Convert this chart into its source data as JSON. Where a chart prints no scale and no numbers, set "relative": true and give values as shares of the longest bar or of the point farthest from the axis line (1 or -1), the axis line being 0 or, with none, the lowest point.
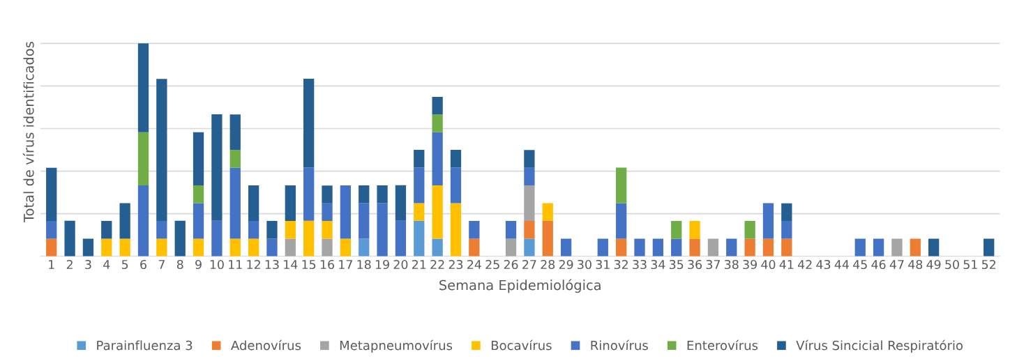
{
  "chart_data": {
    "type": "bar",
    "stacked": true,
    "relative": true,
    "grid": "y",
    "legend": "bottom",
    "xlabel": "Semana Epidemiológica",
    "ylabel": "Total de vírus identificados",
    "categories": [
      "1",
      "2",
      "3",
      "4",
      "5",
      "6",
      "7",
      "8",
      "9",
      "10",
      "11",
      "12",
      "13",
      "14",
      "15",
      "16",
      "17",
      "18",
      "19",
      "20",
      "21",
      "22",
      "23",
      "24",
      "25",
      "26",
      "27",
      "28",
      "29",
      "30",
      "31",
      "32",
      "33",
      "34",
      "35",
      "36",
      "37",
      "38",
      "39",
      "40",
      "41",
      "42",
      "43",
      "44",
      "45",
      "46",
      "47",
      "48",
      "49",
      "50",
      "51",
      "52"
    ],
    "series": [
      {
        "name": "Parainfluenza 3",
        "color": "#5b9bd5",
        "values": [
          0,
          0,
          0,
          0,
          0,
          0,
          0,
          0,
          0,
          0,
          0,
          0,
          0,
          0,
          0,
          0,
          0,
          0.083,
          0,
          0,
          0.167,
          0.083,
          0,
          0,
          0,
          0,
          0.083,
          0,
          0,
          0,
          0,
          0,
          0,
          0,
          0,
          0,
          0,
          0,
          0,
          0,
          0,
          0,
          0,
          0,
          0,
          0,
          0,
          0,
          0,
          0,
          0,
          0
        ]
      },
      {
        "name": "Adenovírus",
        "color": "#ed7d31",
        "values": [
          0.083,
          0,
          0,
          0,
          0,
          0,
          0,
          0,
          0,
          0,
          0,
          0,
          0,
          0,
          0,
          0,
          0,
          0,
          0,
          0,
          0,
          0,
          0,
          0.083,
          0,
          0,
          0.083,
          0.167,
          0,
          0,
          0,
          0.083,
          0,
          0,
          0,
          0.083,
          0,
          0,
          0.083,
          0.083,
          0.083,
          0,
          0,
          0,
          0,
          0,
          0,
          0.083,
          0,
          0,
          0,
          0
        ]
      },
      {
        "name": "Metapneumovírus",
        "color": "#a5a5a5",
        "values": [
          0,
          0,
          0,
          0,
          0,
          0,
          0,
          0,
          0,
          0,
          0,
          0,
          0,
          0.083,
          0,
          0.083,
          0,
          0,
          0,
          0,
          0,
          0,
          0,
          0,
          0,
          0.083,
          0.167,
          0,
          0,
          0,
          0,
          0,
          0,
          0,
          0,
          0,
          0.083,
          0,
          0,
          0,
          0,
          0,
          0,
          0,
          0,
          0,
          0.083,
          0,
          0,
          0,
          0,
          0
        ]
      },
      {
        "name": "Bocavírus",
        "color": "#ffc000",
        "values": [
          0,
          0,
          0,
          0.083,
          0.083,
          0,
          0.083,
          0,
          0.083,
          0,
          0.083,
          0.083,
          0,
          0.083,
          0.167,
          0.083,
          0.083,
          0,
          0,
          0,
          0.083,
          0.25,
          0.25,
          0,
          0,
          0,
          0,
          0.083,
          0,
          0,
          0,
          0,
          0,
          0,
          0,
          0.083,
          0,
          0,
          0,
          0,
          0,
          0,
          0,
          0,
          0,
          0,
          0,
          0,
          0,
          0,
          0,
          0
        ]
      },
      {
        "name": "Rinovírus",
        "color": "#4472c4",
        "values": [
          0.083,
          0,
          0,
          0,
          0,
          0.333,
          0.083,
          0,
          0.167,
          0.167,
          0.333,
          0.083,
          0.083,
          0,
          0.25,
          0.083,
          0.25,
          0.167,
          0.25,
          0.167,
          0.167,
          0.25,
          0.167,
          0.083,
          0,
          0.083,
          0.083,
          0,
          0.083,
          0,
          0.083,
          0.167,
          0.083,
          0.083,
          0.083,
          0,
          0,
          0.083,
          0,
          0.167,
          0.083,
          0,
          0,
          0,
          0.083,
          0.083,
          0,
          0,
          0,
          0,
          0,
          0
        ]
      },
      {
        "name": "Enterovírus",
        "color": "#70ad47",
        "values": [
          0,
          0,
          0,
          0,
          0,
          0.25,
          0,
          0,
          0.083,
          0,
          0.083,
          0,
          0,
          0,
          0,
          0,
          0,
          0,
          0,
          0,
          0,
          0.083,
          0,
          0,
          0,
          0,
          0,
          0,
          0,
          0,
          0,
          0.167,
          0,
          0,
          0.083,
          0,
          0,
          0,
          0.083,
          0,
          0,
          0,
          0,
          0,
          0,
          0,
          0,
          0,
          0,
          0,
          0,
          0
        ]
      },
      {
        "name": "Vírus Sincicial Respiratório",
        "color": "#255e91",
        "values": [
          0.25,
          0.167,
          0.083,
          0.083,
          0.167,
          0.417,
          0.667,
          0.167,
          0.25,
          0.5,
          0.167,
          0.167,
          0.083,
          0.167,
          0.417,
          0.083,
          0,
          0.083,
          0.083,
          0.167,
          0.083,
          0.083,
          0.083,
          0,
          0,
          0,
          0.083,
          0,
          0,
          0,
          0,
          0,
          0,
          0,
          0,
          0,
          0,
          0,
          0,
          0,
          0.083,
          0,
          0,
          0,
          0,
          0,
          0,
          0,
          0.083,
          0,
          0,
          0.083
        ]
      }
    ]
  }
}
